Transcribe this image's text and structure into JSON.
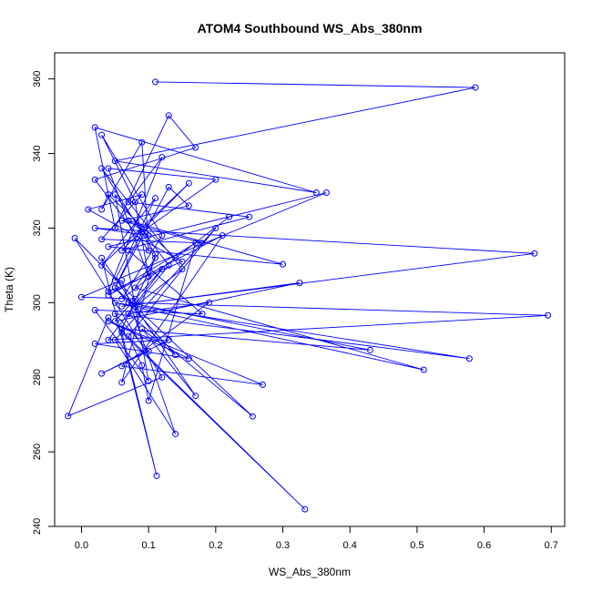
{
  "chart_data": {
    "type": "scatter",
    "title": "ATOM4 Southbound WS_Abs_380nm",
    "xlabel": "WS_Abs_380nm",
    "ylabel": "Theta (K)",
    "xlim": [
      -0.04,
      0.72
    ],
    "ylim": [
      240,
      367
    ],
    "xticks": [
      "0.0",
      "0.1",
      "0.2",
      "0.3",
      "0.4",
      "0.5",
      "0.6",
      "0.7"
    ],
    "yticks": [
      "240",
      "260",
      "280",
      "300",
      "320",
      "340",
      "360"
    ],
    "grid": false,
    "series": [
      {
        "color": "#0000ff",
        "marker": "open-circle",
        "connected": true,
        "x": [
          0.11,
          0.587,
          0.05,
          0.35,
          0.02,
          0.05,
          0.13,
          0.17,
          0.02,
          0.1,
          0.09,
          0.03,
          0.04,
          0.14,
          0.22,
          0.06,
          0.12,
          0.03,
          0.08,
          0.1,
          0.04,
          0.2,
          0.09,
          0.05,
          0.13,
          0.16,
          0.06,
          0.18,
          0.03,
          0.09,
          0.01,
          0.15,
          0.04,
          0.12,
          0.07,
          0.25,
          0.06,
          0.16,
          0.03,
          0.11,
          0.05,
          0.365,
          0.04,
          0.3,
          0.07,
          0.1,
          0.02,
          0.675,
          0.06,
          0.325,
          0.05,
          0.12,
          0.04,
          0.695,
          0.07,
          0.43,
          0.06,
          0.11,
          0.08,
          0.51,
          0.05,
          0.578,
          0.05,
          0.1,
          0.03,
          0.13,
          0.02,
          0.16,
          0.04,
          0.27,
          0.06,
          0.19,
          0.07,
          0.255,
          0.05,
          0.14,
          0.09,
          0.17,
          0.03,
          0.112,
          0.06,
          0.333,
          0.04,
          -0.02,
          0.12,
          -0.01,
          0.08,
          0.0,
          0.06,
          0.14,
          0.05,
          0.2,
          0.07,
          0.09,
          0.1,
          0.17,
          0.04,
          0.21,
          0.06,
          0.11,
          0.03,
          0.15,
          0.08,
          0.13,
          0.05,
          0.1,
          0.02,
          0.18,
          0.07
        ],
        "y": [
          359.2,
          357.7,
          338,
          329.5,
          347,
          320,
          350.2,
          341.6,
          333,
          314,
          343,
          325,
          329,
          312,
          323,
          301,
          318,
          345,
          327,
          307,
          336,
          333,
          319,
          304,
          331,
          326,
          322,
          316,
          317,
          329,
          325,
          311,
          303,
          339,
          327,
          323,
          314,
          332,
          310,
          328,
          306,
          329.5,
          315,
          310.3,
          322,
          318,
          320,
          313.2,
          299,
          305.3,
          295,
          309,
          290,
          296.6,
          300,
          287.3,
          293,
          312,
          304,
          282,
          300,
          285,
          297,
          287,
          281,
          290,
          289,
          285,
          295,
          278,
          283,
          300,
          297,
          269.5,
          304,
          286,
          293,
          275,
          312,
          253.6,
          292,
          244.6,
          296,
          269.6,
          280,
          317.3,
          301,
          301.5,
          306,
          264.8,
          290,
          320,
          291,
          283.2,
          273.7,
          316,
          302,
          318,
          278.6,
          313,
          336,
          309,
          299,
          310,
          329,
          279,
          298,
          297,
          314
        ]
      }
    ]
  }
}
